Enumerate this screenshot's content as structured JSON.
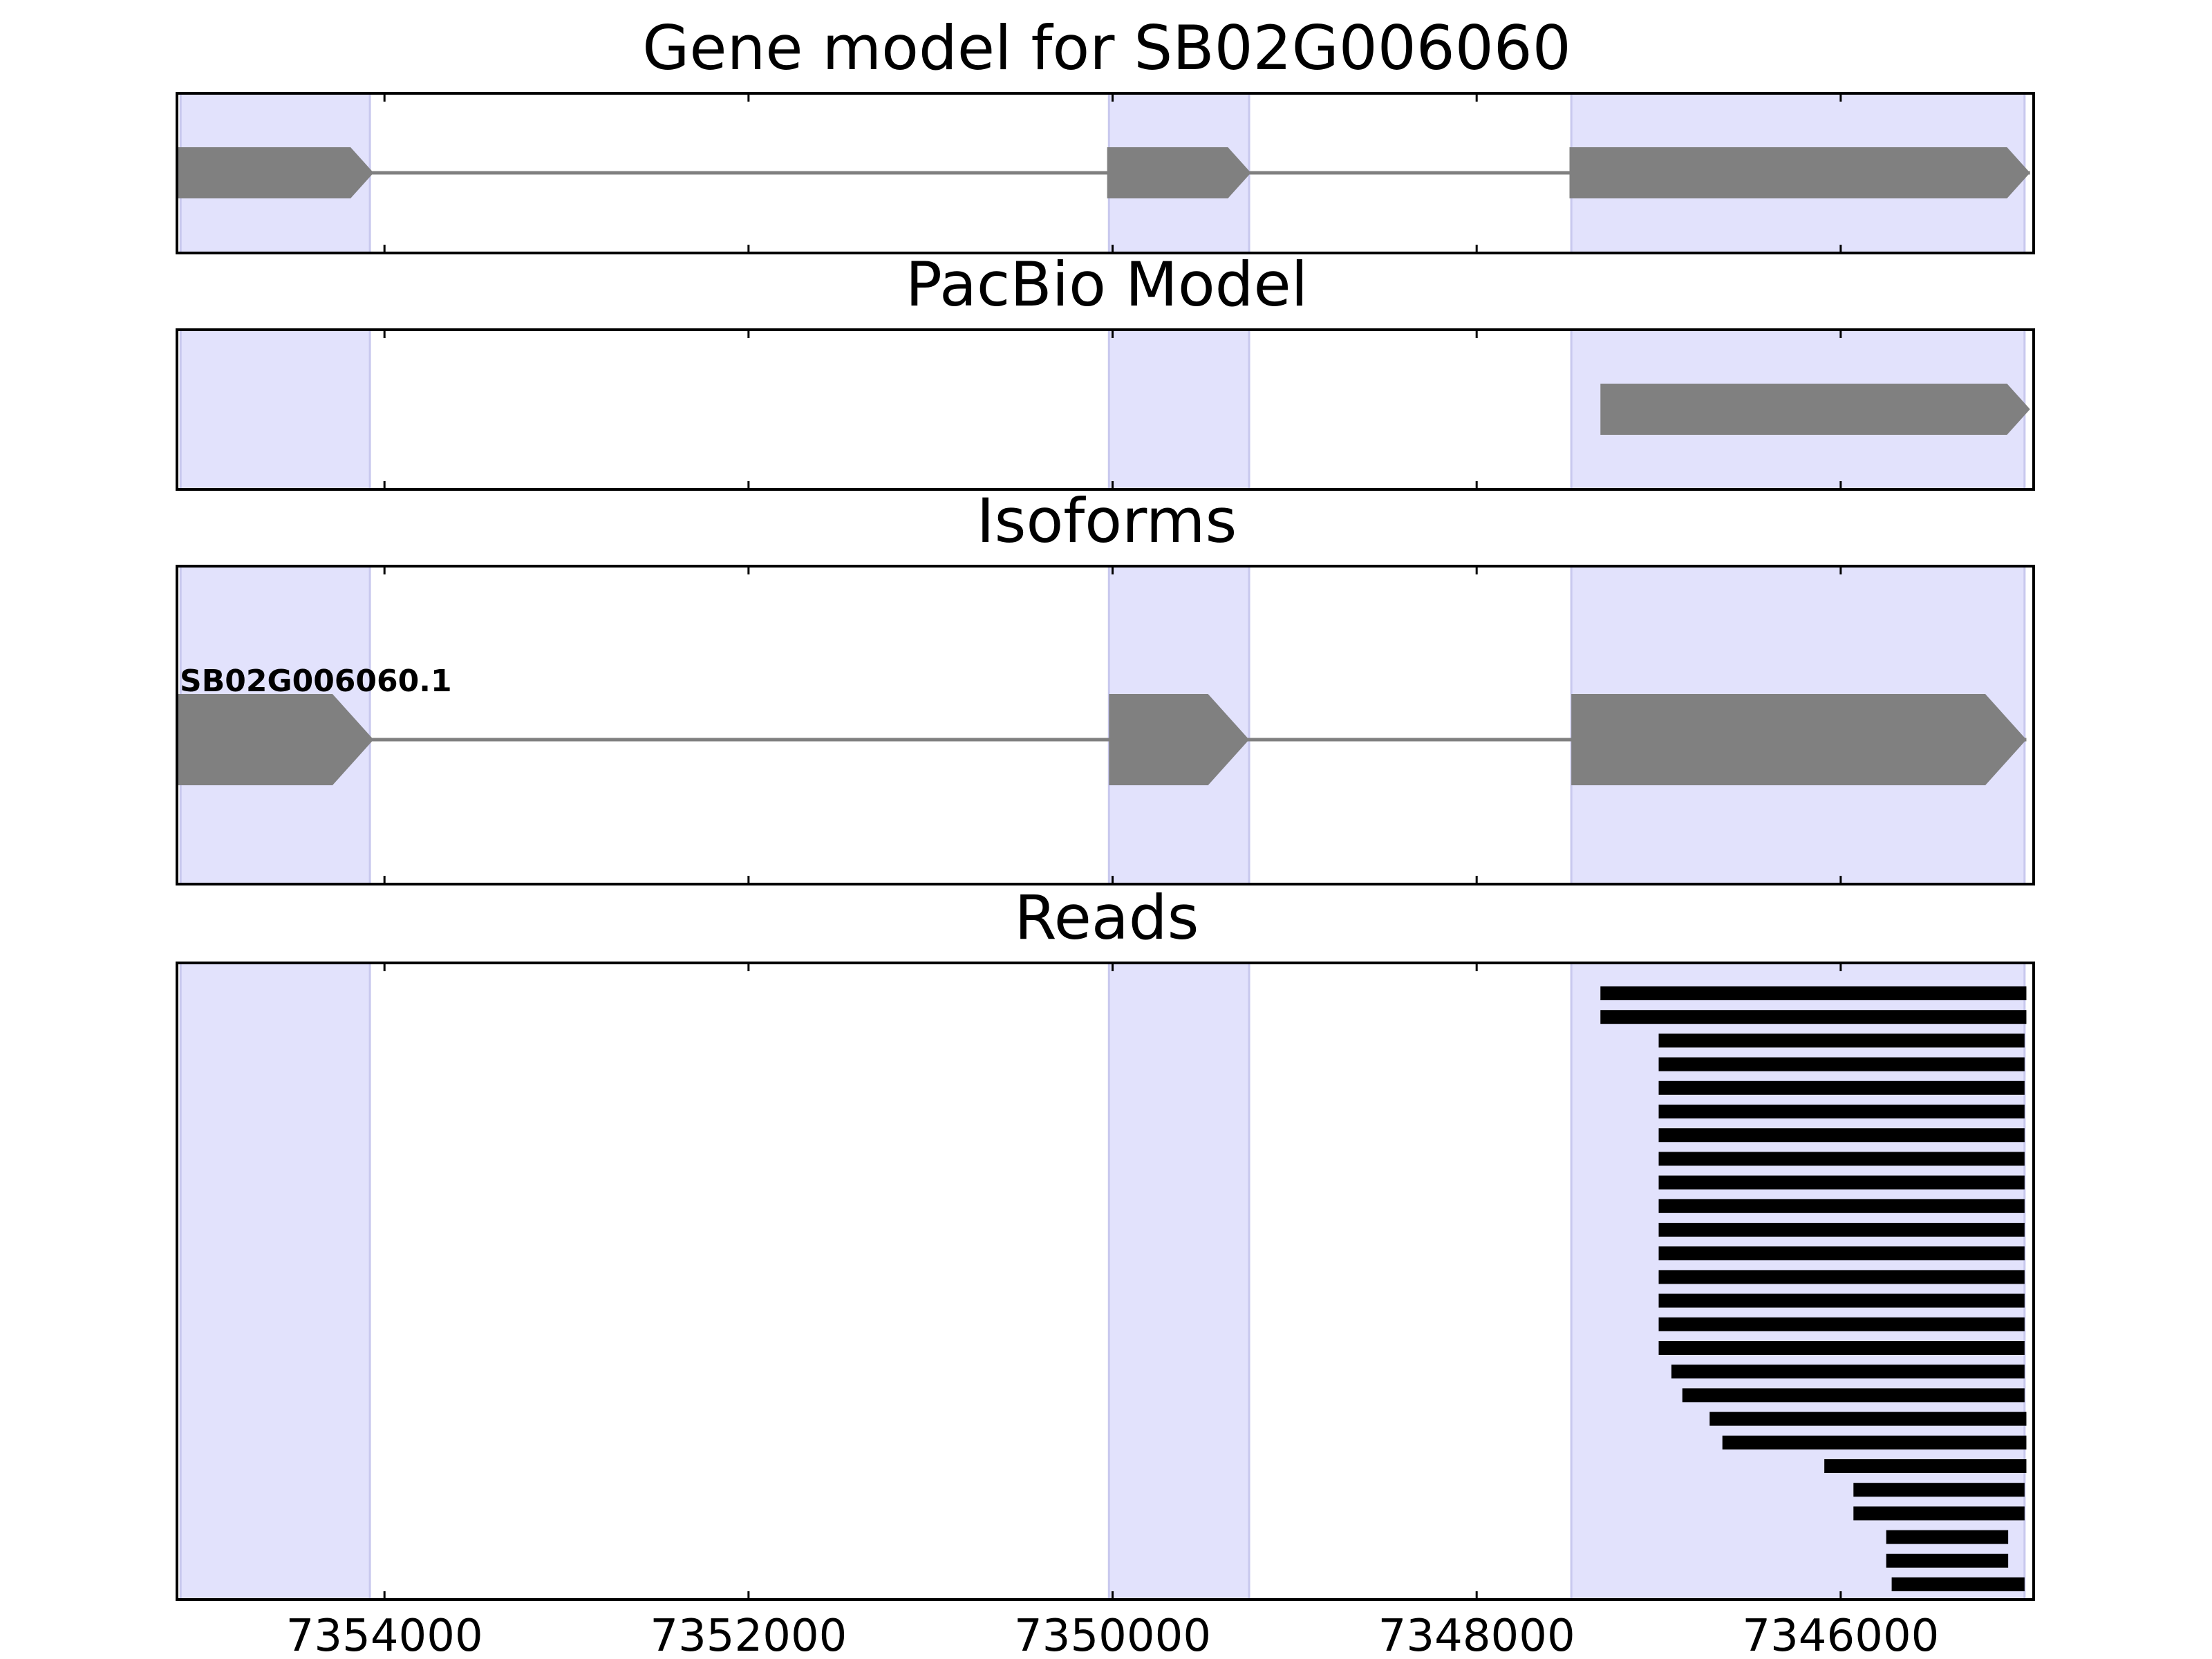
{
  "figure": {
    "background": "#ffffff"
  },
  "colors": {
    "highlight": "#e2e2fc",
    "highlight_edge": "#c8c8ee",
    "gene": "#808080",
    "intron": "#808080",
    "read": "#000000",
    "axis": "#000000"
  },
  "chart_data": {
    "type": "gene-track",
    "x_axis": {
      "xlim": [
        7355140,
        7344940
      ],
      "ticks": [
        7354000,
        7352000,
        7350000,
        7348000,
        7346000
      ],
      "tick_labels": [
        "7354000",
        "7352000",
        "7350000",
        "7348000",
        "7346000"
      ],
      "direction": "decreasing to the right"
    },
    "highlight_regions": [
      [
        7355120,
        7354080
      ],
      [
        7350020,
        7349250
      ],
      [
        7347480,
        7344990
      ]
    ],
    "panels": [
      {
        "key": "gene-model",
        "title": "Gene model for SB02G006060",
        "transcripts": [
          {
            "label": "",
            "exons": [
              [
                7355140,
                7354060
              ],
              [
                7350030,
                7349240
              ],
              [
                7347490,
                7344960
              ]
            ]
          }
        ]
      },
      {
        "key": "pacbio-model",
        "title": "PacBio Model",
        "transcripts": [
          {
            "label": "",
            "exons": [
              [
                7347320,
                7344960
              ]
            ]
          }
        ]
      },
      {
        "key": "isoforms",
        "title": "Isoforms",
        "transcripts": [
          {
            "label": "SB02G006060.1",
            "exons": [
              [
                7355140,
                7354060
              ],
              [
                7350020,
                7349250
              ],
              [
                7347480,
                7344980
              ]
            ]
          }
        ]
      },
      {
        "key": "reads",
        "title": "Reads",
        "reads": [
          [
            7347320,
            7344980
          ],
          [
            7347320,
            7344980
          ],
          [
            7347000,
            7344990
          ],
          [
            7347000,
            7344990
          ],
          [
            7347000,
            7344990
          ],
          [
            7347000,
            7344990
          ],
          [
            7347000,
            7344990
          ],
          [
            7347000,
            7344990
          ],
          [
            7347000,
            7344990
          ],
          [
            7347000,
            7344990
          ],
          [
            7347000,
            7344990
          ],
          [
            7347000,
            7344990
          ],
          [
            7347000,
            7344990
          ],
          [
            7347000,
            7344990
          ],
          [
            7347000,
            7344990
          ],
          [
            7347000,
            7344990
          ],
          [
            7346930,
            7344990
          ],
          [
            7346870,
            7344990
          ],
          [
            7346720,
            7344980
          ],
          [
            7346650,
            7344980
          ],
          [
            7346090,
            7344980
          ],
          [
            7345930,
            7344990
          ],
          [
            7345930,
            7344990
          ],
          [
            7345750,
            7345080
          ],
          [
            7345750,
            7345080
          ],
          [
            7345720,
            7344990
          ]
        ]
      }
    ]
  }
}
